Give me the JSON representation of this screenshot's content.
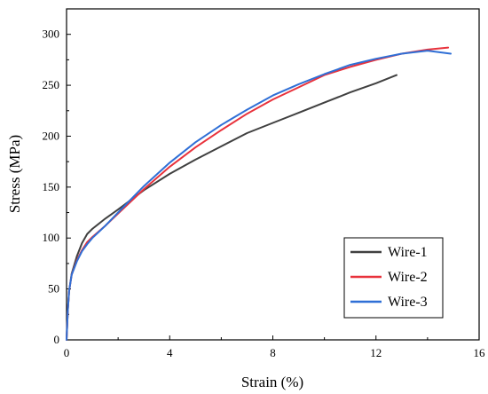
{
  "chart_data": {
    "type": "line",
    "xlabel": "Strain (%)",
    "ylabel": "Stress (MPa)",
    "xlim": [
      0,
      16
    ],
    "ylim": [
      0,
      325
    ],
    "x_ticks": [
      0,
      4,
      8,
      12,
      16
    ],
    "y_ticks": [
      0,
      50,
      100,
      150,
      200,
      250,
      300
    ],
    "grid": false,
    "legend_position": "bottom-right",
    "series": [
      {
        "name": "Wire-1",
        "color": "#404040",
        "x": [
          0,
          0.05,
          0.1,
          0.2,
          0.4,
          0.6,
          0.8,
          1.0,
          1.5,
          2.0,
          3.0,
          4.0,
          5.0,
          6.0,
          7.0,
          8.0,
          9.0,
          10.0,
          11.0,
          12.0,
          12.8
        ],
        "y": [
          0,
          30,
          48,
          65,
          82,
          95,
          104,
          109,
          119,
          128,
          147,
          163,
          177,
          190,
          203,
          213,
          223,
          233,
          243,
          252,
          260
        ]
      },
      {
        "name": "Wire-2",
        "color": "#e8323c",
        "x": [
          0,
          0.05,
          0.1,
          0.2,
          0.4,
          0.6,
          0.8,
          1.0,
          1.5,
          2.0,
          3.0,
          4.0,
          5.0,
          6.0,
          7.0,
          8.0,
          9.0,
          10.0,
          11.0,
          12.0,
          13.0,
          14.0,
          14.8
        ],
        "y": [
          0,
          30,
          48,
          64,
          78,
          88,
          96,
          101,
          112,
          124,
          148,
          170,
          189,
          206,
          222,
          236,
          248,
          260,
          268,
          275,
          281,
          285,
          287
        ]
      },
      {
        "name": "Wire-3",
        "color": "#2f6fd6",
        "x": [
          0,
          0.05,
          0.1,
          0.2,
          0.4,
          0.6,
          0.8,
          1.0,
          1.5,
          2.0,
          3.0,
          4.0,
          5.0,
          6.0,
          7.0,
          8.0,
          9.0,
          10.0,
          11.0,
          12.0,
          13.0,
          14.0,
          14.9
        ],
        "y": [
          0,
          30,
          48,
          64,
          77,
          87,
          94,
          100,
          112,
          125,
          151,
          174,
          194,
          211,
          226,
          240,
          251,
          261,
          270,
          276,
          281,
          284,
          281
        ]
      }
    ]
  }
}
